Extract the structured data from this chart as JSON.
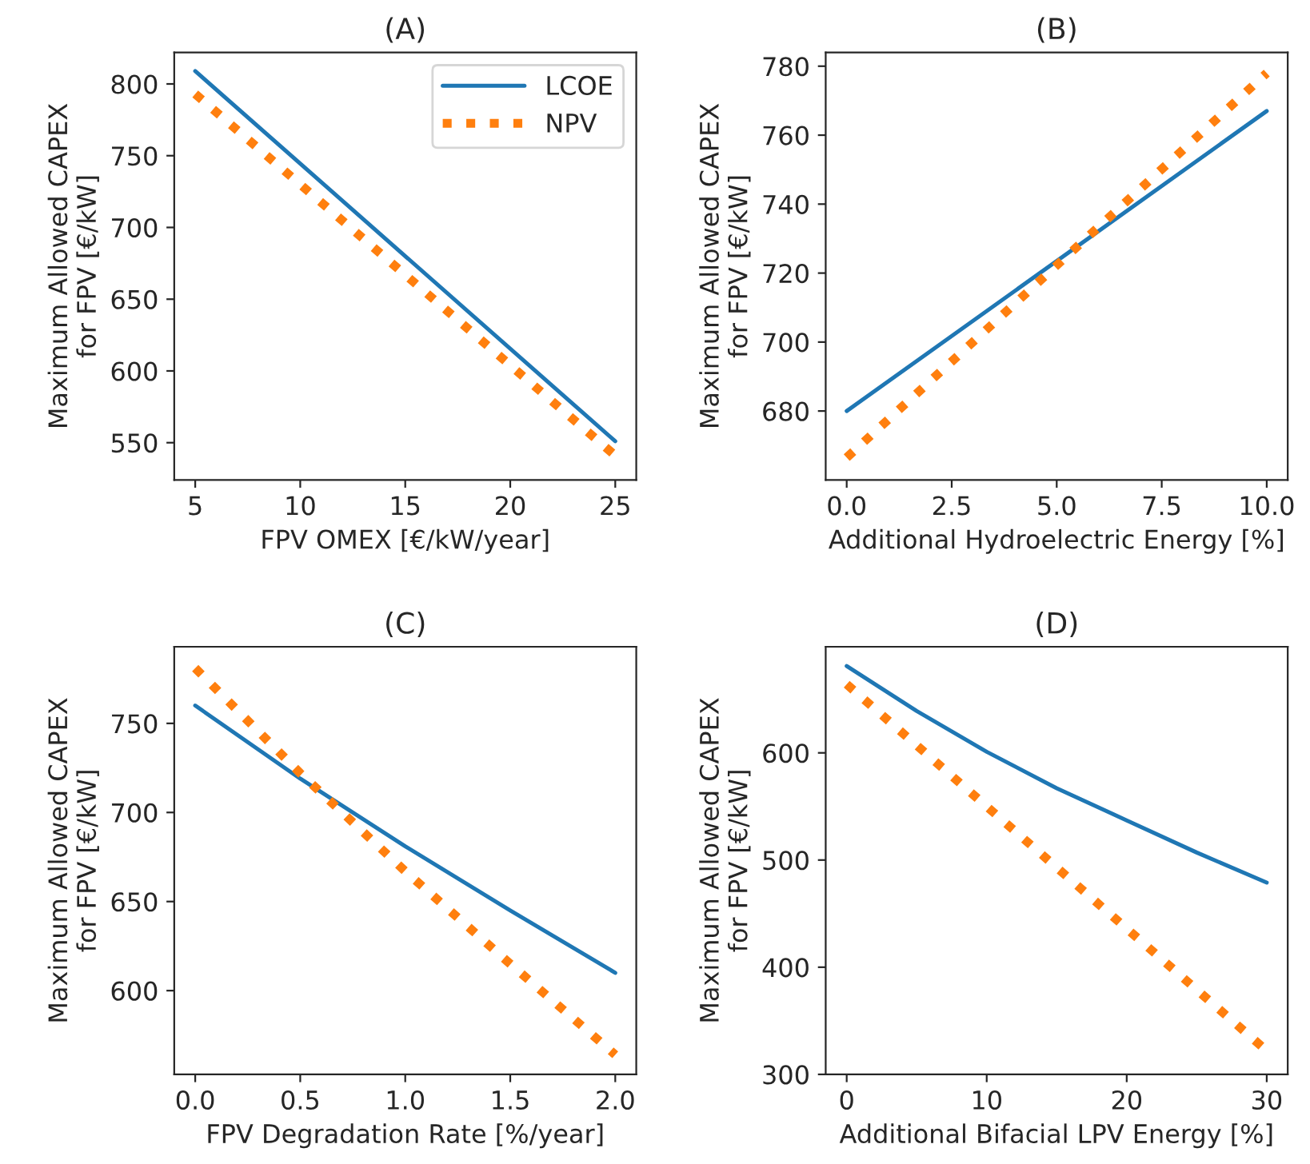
{
  "chart_data": [
    {
      "type": "line",
      "title": "(A)",
      "xlabel": "FPV OMEX [€/kW/year]",
      "ylabel": "Maximum Allowed CAPEX\nfor FPV [€/kW]",
      "xlim": [
        4,
        26
      ],
      "xticks": [
        5,
        10,
        15,
        20,
        25
      ],
      "ylim": [
        524,
        822
      ],
      "yticks": [
        550,
        600,
        650,
        700,
        750,
        800
      ],
      "grid": false,
      "legend": "top right",
      "series": [
        {
          "name": "LCOE",
          "color": "#1f77b4",
          "line_style": "solid",
          "x": [
            5,
            25
          ],
          "values": [
            809,
            551
          ]
        },
        {
          "name": "NPV",
          "color": "#ff7f0e",
          "line_style": "dotted",
          "x": [
            5,
            25
          ],
          "values": [
            793,
            541
          ]
        }
      ]
    },
    {
      "type": "line",
      "title": "(B)",
      "xlabel": "Additional Hydroelectric Energy [%]",
      "ylabel": "Maximum Allowed CAPEX\nfor FPV [€/kW]",
      "xlim": [
        -0.5,
        10.5
      ],
      "xticks": [
        {
          "value": 0,
          "label": "0.0"
        },
        2.5,
        {
          "value": 5,
          "label": "5.0"
        },
        7.5,
        {
          "value": 10,
          "label": "10.0"
        }
      ],
      "ylim": [
        660,
        784
      ],
      "yticks": [
        680,
        700,
        720,
        740,
        760,
        780
      ],
      "grid": false,
      "series": [
        {
          "color": "#1f77b4",
          "line_style": "solid",
          "x": [
            0,
            10
          ],
          "values": [
            680,
            767
          ]
        },
        {
          "color": "#ff7f0e",
          "line_style": "dotted",
          "x": [
            0,
            10
          ],
          "values": [
            666.5,
            778
          ]
        }
      ]
    },
    {
      "type": "line",
      "title": "(C)",
      "xlabel": "FPV Degradation Rate [%/year]",
      "ylabel": "Maximum Allowed CAPEX\nfor FPV [€/kW]",
      "xlim": [
        -0.1,
        2.1
      ],
      "xticks": [
        {
          "value": 0,
          "label": "0.0"
        },
        0.5,
        {
          "value": 1,
          "label": "1.0"
        },
        1.5,
        {
          "value": 2,
          "label": "2.0"
        }
      ],
      "ylim": [
        553,
        793
      ],
      "yticks": [
        600,
        650,
        700,
        750
      ],
      "grid": false,
      "series": [
        {
          "color": "#1f77b4",
          "line_style": "solid",
          "x": [
            0,
            0.5,
            1.0,
            1.5,
            2.0
          ],
          "values": [
            760,
            719,
            681,
            645,
            610
          ]
        },
        {
          "color": "#ff7f0e",
          "line_style": "dotted",
          "x": [
            0,
            0.5,
            1.0,
            1.5,
            2.0
          ],
          "values": [
            781,
            722,
            667,
            615,
            564
          ]
        }
      ]
    },
    {
      "type": "line",
      "title": "(D)",
      "xlabel": "Additional Bifacial LPV Energy [%]",
      "ylabel": "Maximum Allowed CAPEX\nfor FPV [€/kW]",
      "xlim": [
        -1.5,
        31.5
      ],
      "xticks": [
        0,
        10,
        20,
        30
      ],
      "ylim": [
        300,
        699
      ],
      "yticks": [
        300,
        400,
        500,
        600
      ],
      "grid": false,
      "series": [
        {
          "color": "#1f77b4",
          "line_style": "solid",
          "x": [
            0,
            5,
            10,
            15,
            20,
            25,
            30
          ],
          "values": [
            681,
            639,
            601,
            567,
            537,
            507,
            479
          ]
        },
        {
          "color": "#ff7f0e",
          "line_style": "dotted",
          "x": [
            0,
            30
          ],
          "values": [
            664,
            322
          ]
        }
      ]
    }
  ]
}
